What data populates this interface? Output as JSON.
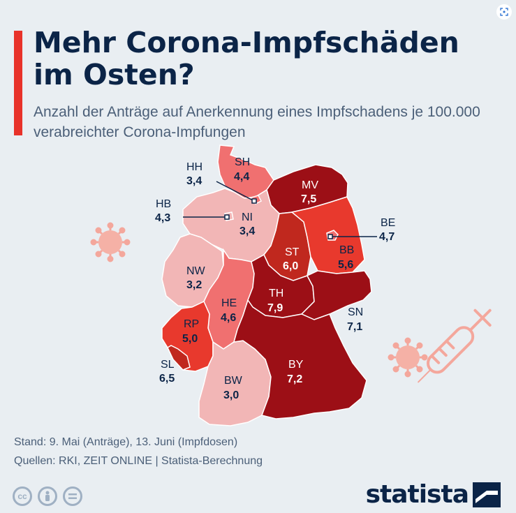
{
  "title": "Mehr Corona-Impfschäden im Osten?",
  "subtitle": "Anzahl der Anträge auf Anerkennung eines Impfschadens je 100.000 verabreichter Corona-Impfungen",
  "states": [
    {
      "code": "SH",
      "value": "4,4"
    },
    {
      "code": "HH",
      "value": "3,4"
    },
    {
      "code": "MV",
      "value": "7,5"
    },
    {
      "code": "HB",
      "value": "4,3"
    },
    {
      "code": "NI",
      "value": "3,4"
    },
    {
      "code": "BE",
      "value": "4,7"
    },
    {
      "code": "ST",
      "value": "6,0"
    },
    {
      "code": "BB",
      "value": "5,6"
    },
    {
      "code": "NW",
      "value": "3,2"
    },
    {
      "code": "TH",
      "value": "7,9"
    },
    {
      "code": "HE",
      "value": "4,6"
    },
    {
      "code": "SN",
      "value": "7,1"
    },
    {
      "code": "RP",
      "value": "5,0"
    },
    {
      "code": "SL",
      "value": "6,5"
    },
    {
      "code": "BY",
      "value": "7,2"
    },
    {
      "code": "BW",
      "value": "3,0"
    }
  ],
  "footer": {
    "stand": "Stand: 9. Mai (Anträge), 13. Juni (Impfdosen)",
    "sources": "Quellen: RKI, ZEIT ONLINE | Statista-Berechnung"
  },
  "license_icons": [
    "cc-icon",
    "person-attribution-icon",
    "equals-noderivs-icon"
  ],
  "brand": "statista",
  "colors": {
    "accent": "#e8322a",
    "background": "#e9eef2",
    "title": "#0b2447",
    "scale": [
      "#f2b6b6",
      "#f07070",
      "#e8392d",
      "#c0281e",
      "#9c0f16"
    ]
  }
}
